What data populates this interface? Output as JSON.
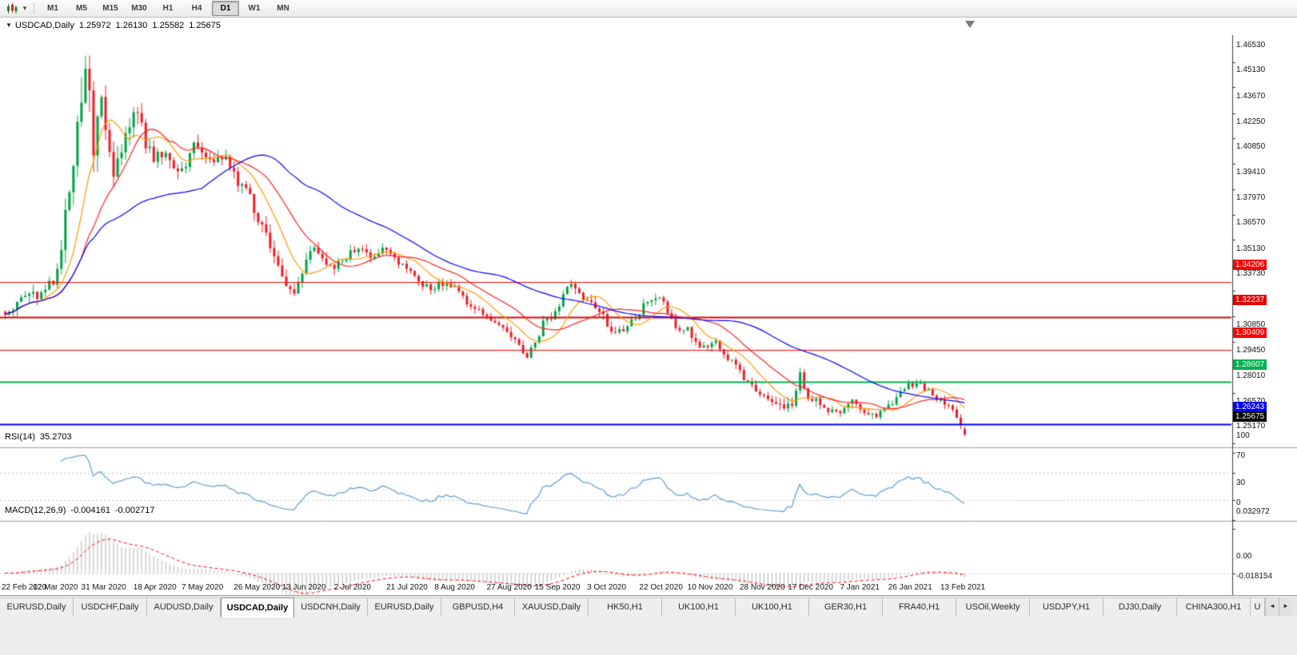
{
  "toolbar": {
    "chart_type_icon": "candlestick-chart-icon",
    "dropdown_icon": "chevron-down-icon",
    "dropdown_glyph": "▾",
    "timeframes": [
      "M1",
      "M5",
      "M15",
      "M30",
      "H1",
      "H4",
      "D1",
      "W1",
      "MN"
    ],
    "active_timeframe": "D1"
  },
  "chart": {
    "dropdown_glyph": "▼",
    "symbol_label": "USDCAD,Daily",
    "open": "1.25972",
    "high": "1.26130",
    "low": "1.25582",
    "close": "1.25675"
  },
  "rsi": {
    "label": "RSI(14)",
    "value": "35.2703",
    "ticks": [
      "100",
      "70",
      "30",
      "0"
    ],
    "dashed_levels": [
      70,
      30
    ],
    "line_color": "#5b9bd5"
  },
  "macd": {
    "label": "MACD(12,26,9)",
    "value_main": "-0.004161",
    "value_signal": "-0.002717",
    "ticks": [
      "0.032972",
      "0.00",
      "-0.018154"
    ],
    "histogram_color": "#b4b4b4",
    "signal_color": "#ff0000"
  },
  "price_axis": {
    "ticks": [
      "1.46530",
      "1.45130",
      "1.43670",
      "1.42250",
      "1.40850",
      "1.39410",
      "1.37970",
      "1.36570",
      "1.35130",
      "1.33730",
      "1.32290",
      "1.30850",
      "1.29450",
      "1.28010",
      "1.26570",
      "1.25170"
    ]
  },
  "levels": [
    {
      "label": "1.34206",
      "value": 1.34206,
      "color": "#ff0000",
      "width": 1
    },
    {
      "label": "1.32237",
      "value": 1.32237,
      "color": "#e00000",
      "width": 2
    },
    {
      "label": "1.30409",
      "value": 1.30409,
      "color": "#ff0000",
      "width": 1
    },
    {
      "label": "1.28607",
      "value": 1.28607,
      "color": "#00b050",
      "width": 2
    },
    {
      "label": "1.26243",
      "value": 1.26243,
      "color": "#0000ff",
      "width": 2
    }
  ],
  "current_price": {
    "label": "1.25675",
    "value": 1.25675,
    "color": "#000000"
  },
  "x_axis": {
    "labels": [
      "22 Feb 2020",
      "12 Mar 2020",
      "31 Mar 2020",
      "18 Apr 2020",
      "7 May 2020",
      "26 May 2020",
      "13 Jun 2020",
      "2 Jul 2020",
      "21 Jul 2020",
      "8 Aug 2020",
      "27 Aug 2020",
      "15 Sep 2020",
      "3 Oct 2020",
      "22 Oct 2020",
      "10 Nov 2020",
      "28 Nov 2020",
      "17 Dec 2020",
      "7 Jan 2021",
      "26 Jan 2021",
      "13 Feb 2021"
    ]
  },
  "bottom_tabs": {
    "tabs": [
      "EURUSD,Daily",
      "USDCHF,Daily",
      "AUDUSD,Daily",
      "USDCAD,Daily",
      "USDCNH,Daily",
      "EURUSD,Daily",
      "GBPUSD,H4",
      "XAUUSD,Daily",
      "HK50,H1",
      "UK100,H1",
      "UK100,H1",
      "GER30,H1",
      "FRA40,H1",
      "USOil,Weekly",
      "USDJPY,H1",
      "DJ30,Daily",
      "CHINA300,H1"
    ],
    "active_index": 3,
    "overflow_label": "U",
    "scroll_left": "◄",
    "scroll_right": "►"
  },
  "chart_data": {
    "type": "candlestick",
    "title": "USDCAD,Daily",
    "symbol": "USDCAD",
    "timeframe": "Daily",
    "y_range": [
      1.25,
      1.48
    ],
    "num_candles": 240,
    "up_color": "#00a244",
    "down_color": "#ee1c25",
    "ma_lines": [
      {
        "period": 10,
        "color": "#ff9900"
      },
      {
        "period": 20,
        "color": "#ff2020"
      },
      {
        "period": 50,
        "color": "#0000ff"
      }
    ],
    "last_candle": {
      "open": 1.25972,
      "high": 1.2613,
      "low": 1.25582,
      "close": 1.25675
    },
    "anchors": [
      [
        0,
        1.3255
      ],
      [
        3,
        1.33
      ],
      [
        6,
        1.3375
      ],
      [
        8,
        1.334
      ],
      [
        10,
        1.339
      ],
      [
        12,
        1.343
      ],
      [
        14,
        1.362
      ],
      [
        16,
        1.395
      ],
      [
        18,
        1.428
      ],
      [
        19,
        1.448
      ],
      [
        20,
        1.463
      ],
      [
        21,
        1.443
      ],
      [
        22,
        1.416
      ],
      [
        23,
        1.432
      ],
      [
        24,
        1.443
      ],
      [
        25,
        1.427
      ],
      [
        27,
        1.406
      ],
      [
        29,
        1.413
      ],
      [
        31,
        1.429
      ],
      [
        33,
        1.437
      ],
      [
        35,
        1.419
      ],
      [
        37,
        1.409
      ],
      [
        39,
        1.415
      ],
      [
        41,
        1.408
      ],
      [
        43,
        1.402
      ],
      [
        45,
        1.409
      ],
      [
        47,
        1.417
      ],
      [
        49,
        1.412
      ],
      [
        52,
        1.408
      ],
      [
        55,
        1.413
      ],
      [
        57,
        1.401
      ],
      [
        60,
        1.393
      ],
      [
        63,
        1.379
      ],
      [
        66,
        1.364
      ],
      [
        68,
        1.35
      ],
      [
        70,
        1.339
      ],
      [
        72,
        1.335
      ],
      [
        74,
        1.348
      ],
      [
        76,
        1.362
      ],
      [
        79,
        1.356
      ],
      [
        82,
        1.349
      ],
      [
        85,
        1.357
      ],
      [
        88,
        1.361
      ],
      [
        91,
        1.357
      ],
      [
        94,
        1.36
      ],
      [
        97,
        1.355
      ],
      [
        100,
        1.349
      ],
      [
        103,
        1.343
      ],
      [
        106,
        1.339
      ],
      [
        109,
        1.341
      ],
      [
        112,
        1.338
      ],
      [
        115,
        1.331
      ],
      [
        118,
        1.326
      ],
      [
        121,
        1.32
      ],
      [
        124,
        1.316
      ],
      [
        126,
        1.312
      ],
      [
        128,
        1.306
      ],
      [
        130,
        1.301
      ],
      [
        132,
        1.309
      ],
      [
        134,
        1.319
      ],
      [
        136,
        1.323
      ],
      [
        138,
        1.33
      ],
      [
        140,
        1.338
      ],
      [
        141,
        1.341
      ],
      [
        142,
        1.339
      ],
      [
        144,
        1.333
      ],
      [
        146,
        1.33
      ],
      [
        148,
        1.326
      ],
      [
        150,
        1.319
      ],
      [
        152,
        1.313
      ],
      [
        154,
        1.316
      ],
      [
        156,
        1.32
      ],
      [
        158,
        1.326
      ],
      [
        160,
        1.331
      ],
      [
        162,
        1.333
      ],
      [
        164,
        1.33
      ],
      [
        166,
        1.321
      ],
      [
        168,
        1.313
      ],
      [
        170,
        1.316
      ],
      [
        172,
        1.308
      ],
      [
        174,
        1.305
      ],
      [
        176,
        1.309
      ],
      [
        178,
        1.306
      ],
      [
        180,
        1.3
      ],
      [
        182,
        1.295
      ],
      [
        184,
        1.289
      ],
      [
        186,
        1.284
      ],
      [
        188,
        1.28
      ],
      [
        190,
        1.276
      ],
      [
        192,
        1.2725
      ],
      [
        194,
        1.2715
      ],
      [
        196,
        1.274
      ],
      [
        197,
        1.283
      ],
      [
        198,
        1.292
      ],
      [
        199,
        1.28
      ],
      [
        201,
        1.277
      ],
      [
        203,
        1.274
      ],
      [
        205,
        1.27
      ],
      [
        207,
        1.268
      ],
      [
        209,
        1.273
      ],
      [
        211,
        1.276
      ],
      [
        213,
        1.27
      ],
      [
        215,
        1.266
      ],
      [
        217,
        1.268
      ],
      [
        219,
        1.273
      ],
      [
        221,
        1.275
      ],
      [
        223,
        1.28
      ],
      [
        225,
        1.284
      ],
      [
        227,
        1.2855
      ],
      [
        229,
        1.283
      ],
      [
        231,
        1.279
      ],
      [
        233,
        1.276
      ],
      [
        235,
        1.273
      ],
      [
        236,
        1.271
      ],
      [
        237,
        1.267
      ],
      [
        238,
        1.262
      ],
      [
        239,
        1.25675
      ]
    ],
    "volatility": [
      [
        0,
        0.007
      ],
      [
        12,
        0.009
      ],
      [
        16,
        0.018
      ],
      [
        19,
        0.032
      ],
      [
        22,
        0.026
      ],
      [
        25,
        0.018
      ],
      [
        30,
        0.014
      ],
      [
        35,
        0.013
      ],
      [
        40,
        0.011
      ],
      [
        50,
        0.009
      ],
      [
        58,
        0.009
      ],
      [
        65,
        0.01
      ],
      [
        72,
        0.009
      ],
      [
        80,
        0.007
      ],
      [
        90,
        0.006
      ],
      [
        100,
        0.006
      ],
      [
        110,
        0.006
      ],
      [
        120,
        0.006
      ],
      [
        130,
        0.0065
      ],
      [
        140,
        0.007
      ],
      [
        150,
        0.0065
      ],
      [
        160,
        0.006
      ],
      [
        170,
        0.006
      ],
      [
        180,
        0.0055
      ],
      [
        190,
        0.0055
      ],
      [
        198,
        0.009
      ],
      [
        205,
        0.005
      ],
      [
        215,
        0.0055
      ],
      [
        225,
        0.005
      ],
      [
        235,
        0.005
      ],
      [
        239,
        0.0055
      ]
    ]
  }
}
